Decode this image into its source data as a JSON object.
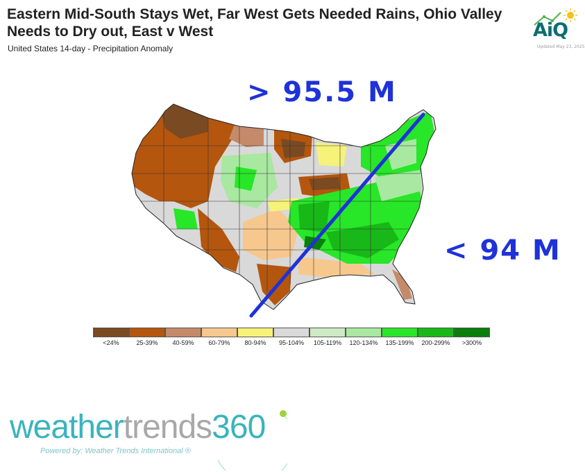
{
  "header": {
    "title": "Eastern Mid-South Stays Wet, Far West Gets Needed Rains, Ohio Valley Needs to Dry out, East v West",
    "subtitle": "United States 14-day - Precipitation Anomaly"
  },
  "brand": {
    "aiq_logo_text": "AiQ",
    "updated_text": "Updated May 23, 2025",
    "wt_weather": "weather",
    "wt_trends": "trends",
    "wt_360": "360",
    "wt_powered": "Powered by: Weather Trends International ®"
  },
  "map": {
    "annotation_west": "> 95.5 M",
    "annotation_east": "< 94 M",
    "divider_line_color": "#1e32d8"
  },
  "legend": [
    {
      "label": "<24%",
      "color": "#7a4a22"
    },
    {
      "label": "25-39%",
      "color": "#b4560e"
    },
    {
      "label": "40-59%",
      "color": "#c48a6a"
    },
    {
      "label": "60-79%",
      "color": "#f6c88e"
    },
    {
      "label": "80-94%",
      "color": "#f6f27a"
    },
    {
      "label": "95-104%",
      "color": "#d9d9d9"
    },
    {
      "label": "105-119%",
      "color": "#cdeac4"
    },
    {
      "label": "120-134%",
      "color": "#a8e8a0"
    },
    {
      "label": "135-199%",
      "color": "#28e628"
    },
    {
      "label": "200-299%",
      "color": "#18b818"
    },
    {
      "label": ">300%",
      "color": "#0b7f0b"
    }
  ],
  "colors": {
    "wt_teal": "#3ab4bd",
    "wt_gray": "#a8a8a8",
    "aiq_teal": "#0d6d74",
    "annotation_blue": "#1e32d8"
  }
}
